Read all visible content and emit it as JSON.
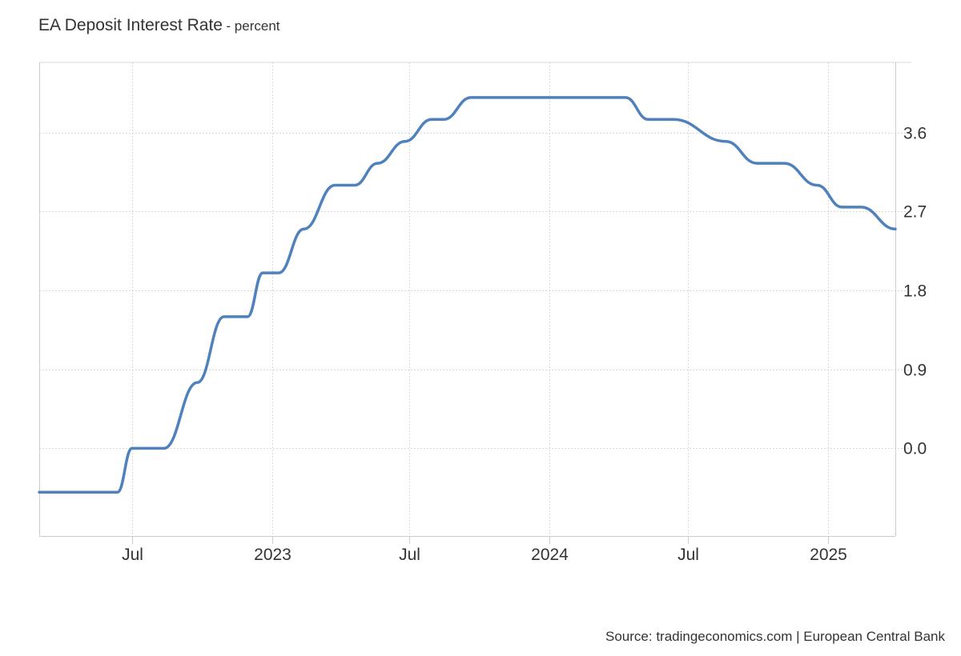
{
  "title": "EA Deposit Interest Rate",
  "subtitle": "- percent",
  "source": "Source: tradingeconomics.com | European Central Bank",
  "colors": {
    "line": "#4f81bd",
    "grid": "#d9d9d9",
    "axis": "#cccccc",
    "text": "#333333"
  },
  "chart_data": {
    "type": "line",
    "title": "EA Deposit Interest Rate",
    "subtitle": "- percent",
    "xlabel": "",
    "ylabel": "",
    "grid": true,
    "y_axis_side": "right",
    "xlim": [
      "2022-03-01",
      "2025-03-31"
    ],
    "ylim": [
      -1.0,
      4.4
    ],
    "yticks": [
      0.0,
      0.9,
      1.8,
      2.7,
      3.6
    ],
    "ytick_labels": [
      "0.0",
      "0.9",
      "1.8",
      "2.7",
      "3.6"
    ],
    "xticks": [
      {
        "date": "2022-07-01",
        "label": "Jul"
      },
      {
        "date": "2023-01-01",
        "label": "2023"
      },
      {
        "date": "2023-07-01",
        "label": "Jul"
      },
      {
        "date": "2024-01-01",
        "label": "2024"
      },
      {
        "date": "2024-07-01",
        "label": "Jul"
      },
      {
        "date": "2025-01-01",
        "label": "2025"
      }
    ],
    "series": [
      {
        "points": [
          {
            "x": "2022-03-01",
            "y": -0.5
          },
          {
            "x": "2022-06-12",
            "y": -0.5
          },
          {
            "x": "2022-07-01",
            "y": 0.0
          },
          {
            "x": "2022-08-12",
            "y": 0.0
          },
          {
            "x": "2022-09-25",
            "y": 0.75
          },
          {
            "x": "2022-10-30",
            "y": 1.5
          },
          {
            "x": "2022-11-30",
            "y": 1.5
          },
          {
            "x": "2022-12-20",
            "y": 2.0
          },
          {
            "x": "2023-01-10",
            "y": 2.0
          },
          {
            "x": "2023-02-12",
            "y": 2.5
          },
          {
            "x": "2023-03-25",
            "y": 3.0
          },
          {
            "x": "2023-04-20",
            "y": 3.0
          },
          {
            "x": "2023-05-20",
            "y": 3.25
          },
          {
            "x": "2023-06-25",
            "y": 3.5
          },
          {
            "x": "2023-07-30",
            "y": 3.75
          },
          {
            "x": "2023-08-15",
            "y": 3.75
          },
          {
            "x": "2023-09-20",
            "y": 4.0
          },
          {
            "x": "2024-04-10",
            "y": 4.0
          },
          {
            "x": "2024-05-10",
            "y": 3.75
          },
          {
            "x": "2024-06-12",
            "y": 3.75
          },
          {
            "x": "2024-08-20",
            "y": 3.5
          },
          {
            "x": "2024-09-30",
            "y": 3.25
          },
          {
            "x": "2024-11-05",
            "y": 3.25
          },
          {
            "x": "2024-12-18",
            "y": 3.0
          },
          {
            "x": "2025-01-20",
            "y": 2.75
          },
          {
            "x": "2025-02-14",
            "y": 2.75
          },
          {
            "x": "2025-03-31",
            "y": 2.5
          }
        ]
      }
    ]
  }
}
